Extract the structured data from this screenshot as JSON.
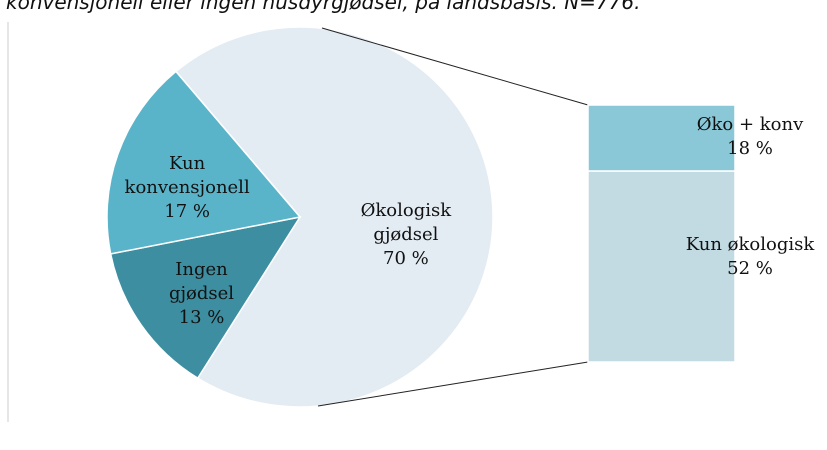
{
  "chart_data": {
    "type": "pie-of-bar",
    "title": "konvensjonell eller ingen husdyrgjødsel, på landsbasis. N=776.",
    "pie": {
      "categories": [
        "Økologisk gjødsel",
        "Ingen gjødsel",
        "Kun konvensjonell"
      ],
      "values": [
        70,
        13,
        17
      ],
      "value_labels": [
        "70 %",
        "13 %",
        "17 %"
      ],
      "colors": [
        "#e3ebf3",
        "#3d8ea0",
        "#5ab4c9"
      ]
    },
    "bar": {
      "categories": [
        "Øko + konv",
        "Kun økologisk"
      ],
      "values": [
        18,
        52
      ],
      "value_labels": [
        "18 %",
        "52 %"
      ],
      "colors": [
        "#8ac8d8",
        "#c2dbe3"
      ]
    }
  }
}
